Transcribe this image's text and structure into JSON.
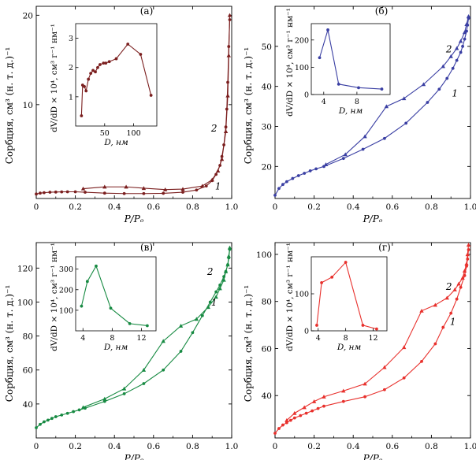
{
  "figure": {
    "ylabel": "Сорбция, см³ (н. т. д.)⁻¹",
    "xlabel": "P/Pₒ",
    "inset_ylabel": "dV/dD × 10⁴, см³ г⁻¹ нм⁻¹",
    "inset_xlabel": "D, нм",
    "curve_labels": [
      "1",
      "2"
    ]
  },
  "chart_data": [
    {
      "id": "a",
      "panel_label": "(а)",
      "type": "line",
      "color": "#7b1f1f",
      "xlim": [
        0,
        1
      ],
      "ylim": [
        -0.5,
        21
      ],
      "xticks": [
        "0",
        "0.2",
        "0.4",
        "0.6",
        "0.8",
        "1.0"
      ],
      "yticks": [
        10,
        20
      ],
      "ytick_labels": [
        "10",
        "20"
      ],
      "series": [
        {
          "name": "1",
          "marker": "circle",
          "x": [
            0.0,
            0.02,
            0.04,
            0.07,
            0.1,
            0.13,
            0.16,
            0.2,
            0.25,
            0.35,
            0.45,
            0.55,
            0.65,
            0.75,
            0.82,
            0.87,
            0.9,
            0.92,
            0.94,
            0.95,
            0.96,
            0.97,
            0.975,
            0.98,
            0.985,
            0.99
          ],
          "y": [
            0.0,
            0.1,
            0.15,
            0.2,
            0.22,
            0.24,
            0.25,
            0.25,
            0.2,
            0.1,
            0.05,
            0.05,
            0.08,
            0.2,
            0.45,
            0.9,
            1.5,
            2.2,
            3.2,
            4.2,
            5.5,
            7.5,
            9.5,
            12.5,
            16.5,
            19.5
          ]
        },
        {
          "name": "2",
          "marker": "triangle",
          "x": [
            0.24,
            0.35,
            0.46,
            0.55,
            0.66,
            0.75,
            0.85,
            0.9,
            0.93,
            0.95,
            0.97,
            0.98,
            0.985,
            0.99
          ],
          "y": [
            0.6,
            0.8,
            0.8,
            0.65,
            0.5,
            0.55,
            0.9,
            1.6,
            2.6,
            3.9,
            7.0,
            11.0,
            15.5,
            20.0
          ]
        }
      ],
      "curve_label_pos": {
        "1": [
          0.93,
          0.5
        ],
        "2": [
          0.91,
          7.0
        ]
      },
      "inset": {
        "xlim": [
          0,
          140
        ],
        "ylim": [
          0,
          3.5
        ],
        "xticks": [
          50,
          100
        ],
        "xtick_labels": [
          "50",
          "100"
        ],
        "yticks": [
          1,
          2,
          3
        ],
        "ytick_labels": [
          "1",
          "2",
          "3"
        ],
        "x": [
          10,
          12,
          15,
          18,
          22,
          26,
          30,
          34,
          38,
          42,
          48,
          52,
          58,
          70,
          90,
          112,
          130
        ],
        "y": [
          0.35,
          1.4,
          1.35,
          1.2,
          1.6,
          1.8,
          1.9,
          1.85,
          2.0,
          2.1,
          2.15,
          2.15,
          2.2,
          2.3,
          2.8,
          2.45,
          1.05
        ]
      }
    },
    {
      "id": "b",
      "panel_label": "(б)",
      "type": "line",
      "color": "#3a3fa3",
      "xlim": [
        0,
        1
      ],
      "ylim": [
        12,
        60
      ],
      "xticks": [
        "0",
        "0.2",
        "0.4",
        "0.6",
        "0.8",
        "1.0"
      ],
      "yticks": [
        20,
        30,
        40,
        50
      ],
      "ytick_labels": [
        "20",
        "30",
        "40",
        "50"
      ],
      "series": [
        {
          "name": "1",
          "marker": "circle",
          "x": [
            0.0,
            0.02,
            0.04,
            0.06,
            0.09,
            0.12,
            0.15,
            0.18,
            0.21,
            0.25,
            0.35,
            0.45,
            0.56,
            0.67,
            0.78,
            0.84,
            0.88,
            0.91,
            0.93,
            0.95,
            0.96,
            0.97,
            0.98,
            0.985,
            0.99
          ],
          "y": [
            12.8,
            14.5,
            15.5,
            16.2,
            17.0,
            17.7,
            18.3,
            18.9,
            19.4,
            20.0,
            22.0,
            24.3,
            27.0,
            30.8,
            36.0,
            39.3,
            42.0,
            44.5,
            46.5,
            48.5,
            50.0,
            51.8,
            53.8,
            55.3,
            57.0
          ]
        },
        {
          "name": "2",
          "marker": "triangle",
          "x": [
            0.26,
            0.36,
            0.46,
            0.57,
            0.66,
            0.76,
            0.86,
            0.9,
            0.93,
            0.95,
            0.97,
            0.98,
            0.99
          ],
          "y": [
            20.5,
            23.0,
            27.5,
            35.0,
            37.0,
            40.5,
            45.0,
            47.5,
            49.5,
            51.3,
            53.5,
            55.5,
            57.5
          ]
        }
      ],
      "curve_label_pos": {
        "1": [
          0.92,
          37.5
        ],
        "2": [
          0.89,
          48.5
        ]
      },
      "inset": {
        "xlim": [
          2.5,
          12
        ],
        "ylim": [
          0,
          260
        ],
        "xticks": [
          4,
          8
        ],
        "xtick_labels": [
          "4",
          "8"
        ],
        "yticks": [
          0,
          100,
          200
        ],
        "ytick_labels": [
          "0",
          "100",
          "200"
        ],
        "x": [
          3.5,
          4.5,
          5.8,
          8.2,
          11
        ],
        "y": [
          135,
          237,
          38,
          25,
          20
        ]
      }
    },
    {
      "id": "v",
      "panel_label": "(в)",
      "type": "line",
      "color": "#178a42",
      "xlim": [
        0,
        1
      ],
      "ylim": [
        20,
        135
      ],
      "xticks": [
        "0",
        "0.2",
        "0.4",
        "0.6",
        "0.8",
        "1.0"
      ],
      "yticks": [
        40,
        60,
        80,
        100,
        120
      ],
      "ytick_labels": [
        "40",
        "60",
        "80",
        "100",
        "120"
      ],
      "series": [
        {
          "name": "1",
          "marker": "circle",
          "x": [
            0.0,
            0.02,
            0.04,
            0.06,
            0.08,
            0.1,
            0.13,
            0.16,
            0.19,
            0.22,
            0.25,
            0.35,
            0.45,
            0.55,
            0.65,
            0.74,
            0.8,
            0.85,
            0.89,
            0.92,
            0.94,
            0.96,
            0.97,
            0.98,
            0.985,
            0.99
          ],
          "y": [
            26,
            28,
            29.5,
            30.5,
            31.5,
            32.5,
            33.5,
            34.5,
            35.5,
            36.5,
            37.5,
            41.5,
            46,
            52,
            60,
            71,
            82,
            92,
            100,
            106,
            110,
            115,
            118,
            122,
            126,
            131
          ]
        },
        {
          "name": "2",
          "marker": "triangle",
          "x": [
            0.24,
            0.35,
            0.45,
            0.55,
            0.65,
            0.74,
            0.82,
            0.88,
            0.92,
            0.94,
            0.96,
            0.97,
            0.98,
            0.985,
            0.99
          ],
          "y": [
            38,
            43,
            49,
            60,
            77,
            86,
            90,
            97,
            103,
            108,
            113,
            118,
            122,
            127,
            132
          ]
        }
      ],
      "curve_label_pos": {
        "1": [
          0.91,
          98
        ],
        "2": [
          0.89,
          116
        ]
      },
      "inset": {
        "xlim": [
          3,
          14
        ],
        "ylim": [
          0,
          360
        ],
        "xticks": [
          4,
          8,
          12
        ],
        "xtick_labels": [
          "4",
          "8",
          "12"
        ],
        "yticks": [
          100,
          200,
          300
        ],
        "ytick_labels": [
          "100",
          "200",
          "300"
        ],
        "x": [
          3.8,
          4.6,
          5.8,
          7.8,
          10.4,
          12.8
        ],
        "y": [
          120,
          240,
          315,
          110,
          35,
          25
        ]
      }
    },
    {
      "id": "g",
      "panel_label": "(г)",
      "type": "line",
      "color": "#e8302c",
      "xlim": [
        0,
        1
      ],
      "ylim": [
        22,
        105
      ],
      "xticks": [
        "0",
        "0.2",
        "0.4",
        "0.6",
        "0.8",
        "1.0"
      ],
      "yticks": [
        40,
        60,
        80,
        100
      ],
      "ytick_labels": [
        "40",
        "60",
        "80",
        "100"
      ],
      "series": [
        {
          "name": "1",
          "marker": "circle",
          "x": [
            0.0,
            0.02,
            0.04,
            0.06,
            0.08,
            0.1,
            0.13,
            0.16,
            0.19,
            0.22,
            0.25,
            0.35,
            0.46,
            0.56,
            0.66,
            0.75,
            0.82,
            0.86,
            0.9,
            0.93,
            0.95,
            0.97,
            0.98,
            0.985,
            0.99
          ],
          "y": [
            24,
            26,
            27.5,
            28.5,
            29.5,
            30.5,
            31.5,
            32.5,
            33.5,
            34.5,
            35.5,
            37.5,
            39.5,
            42.5,
            47.5,
            54.5,
            62,
            69,
            75,
            81,
            86,
            91,
            95,
            98,
            102
          ]
        },
        {
          "name": "2",
          "marker": "triangle",
          "x": [
            0.06,
            0.1,
            0.15,
            0.2,
            0.25,
            0.35,
            0.46,
            0.56,
            0.66,
            0.75,
            0.82,
            0.88,
            0.92,
            0.94,
            0.96,
            0.97,
            0.98,
            0.985,
            0.99
          ],
          "y": [
            29.5,
            32.5,
            35,
            37.5,
            39.5,
            42,
            45,
            52,
            60.5,
            76,
            78.5,
            81.5,
            85,
            87.5,
            90,
            93,
            96,
            100,
            104
          ]
        }
      ],
      "curve_label_pos": {
        "1": [
          0.91,
          70
        ],
        "2": [
          0.89,
          85
        ]
      },
      "inset": {
        "xlim": [
          3,
          14
        ],
        "ylim": [
          0,
          200
        ],
        "xticks": [
          4,
          8,
          12
        ],
        "xtick_labels": [
          "4",
          "8",
          "12"
        ],
        "yticks": [
          0,
          100
        ],
        "ytick_labels": [
          "0",
          "100"
        ],
        "x": [
          3.8,
          4.5,
          6,
          8,
          10.5,
          12.5
        ],
        "y": [
          15,
          130,
          145,
          185,
          15,
          5
        ]
      }
    }
  ]
}
